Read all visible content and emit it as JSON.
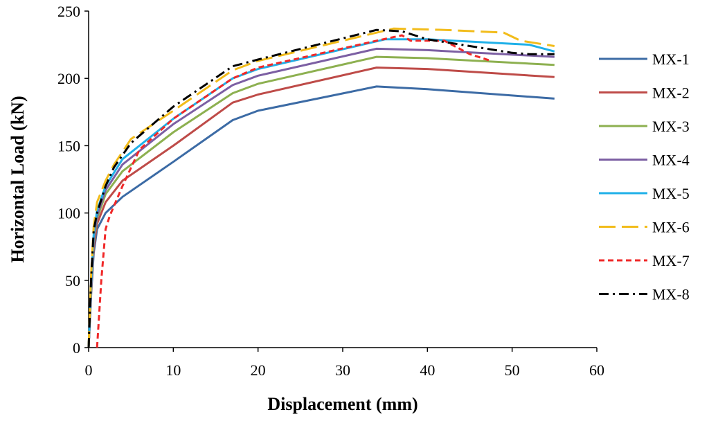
{
  "chart_data": {
    "type": "line",
    "title": "",
    "xlabel": "Displacement (mm)",
    "ylabel": "Horizontal Load (kN)",
    "xlim": [
      0,
      60
    ],
    "ylim": [
      0,
      250
    ],
    "xticks": [
      0,
      10,
      20,
      30,
      40,
      50,
      60
    ],
    "yticks": [
      0,
      50,
      100,
      150,
      200,
      250
    ],
    "grid": false,
    "legend_position": "right",
    "series": [
      {
        "name": "MX-1",
        "color": "#3C6BA5",
        "dash": "solid",
        "points": [
          [
            0,
            0
          ],
          [
            0.3,
            40
          ],
          [
            0.6,
            70
          ],
          [
            1,
            88
          ],
          [
            2,
            100
          ],
          [
            4,
            112
          ],
          [
            10,
            138
          ],
          [
            17,
            169
          ],
          [
            20,
            176
          ],
          [
            34,
            194
          ],
          [
            40,
            192
          ],
          [
            55,
            185
          ]
        ]
      },
      {
        "name": "MX-2",
        "color": "#BE4B48",
        "dash": "solid",
        "points": [
          [
            0,
            0
          ],
          [
            0.3,
            42
          ],
          [
            0.6,
            74
          ],
          [
            1,
            92
          ],
          [
            2,
            108
          ],
          [
            4,
            124
          ],
          [
            10,
            150
          ],
          [
            17,
            182
          ],
          [
            20,
            188
          ],
          [
            34,
            208
          ],
          [
            40,
            207
          ],
          [
            55,
            201
          ]
        ]
      },
      {
        "name": "MX-3",
        "color": "#8DB050",
        "dash": "solid",
        "points": [
          [
            0,
            0
          ],
          [
            0.3,
            44
          ],
          [
            0.6,
            78
          ],
          [
            1,
            96
          ],
          [
            2,
            114
          ],
          [
            4,
            131
          ],
          [
            10,
            160
          ],
          [
            17,
            189
          ],
          [
            20,
            196
          ],
          [
            34,
            216
          ],
          [
            40,
            215
          ],
          [
            55,
            210
          ]
        ]
      },
      {
        "name": "MX-4",
        "color": "#7C5FA3",
        "dash": "solid",
        "points": [
          [
            0,
            0
          ],
          [
            0.3,
            45
          ],
          [
            0.6,
            80
          ],
          [
            1,
            98
          ],
          [
            2,
            117
          ],
          [
            4,
            136
          ],
          [
            10,
            166
          ],
          [
            17,
            195
          ],
          [
            20,
            202
          ],
          [
            34,
            222
          ],
          [
            40,
            221
          ],
          [
            55,
            216
          ]
        ]
      },
      {
        "name": "MX-5",
        "color": "#1FB0E8",
        "dash": "solid",
        "points": [
          [
            0,
            0
          ],
          [
            0.3,
            48
          ],
          [
            0.6,
            84
          ],
          [
            1,
            102
          ],
          [
            2,
            120
          ],
          [
            4,
            140
          ],
          [
            6,
            150
          ],
          [
            10,
            170
          ],
          [
            17,
            200
          ],
          [
            20,
            207
          ],
          [
            35,
            229
          ],
          [
            40,
            229
          ],
          [
            52,
            225
          ],
          [
            55,
            220
          ]
        ]
      },
      {
        "name": "MX-6",
        "color": "#F2BC1B",
        "dash": "long",
        "points": [
          [
            0,
            0
          ],
          [
            0.3,
            55
          ],
          [
            0.6,
            90
          ],
          [
            1,
            108
          ],
          [
            2,
            124
          ],
          [
            3,
            136
          ],
          [
            5,
            155
          ],
          [
            10,
            176
          ],
          [
            17,
            206
          ],
          [
            20,
            213
          ],
          [
            36,
            237
          ],
          [
            42,
            236
          ],
          [
            49,
            234
          ],
          [
            51,
            228
          ],
          [
            55,
            224
          ]
        ]
      },
      {
        "name": "MX-7",
        "color": "#F02828",
        "dash": "short",
        "points": [
          [
            1,
            0
          ],
          [
            1.5,
            50
          ],
          [
            2,
            88
          ],
          [
            2.5,
            98
          ],
          [
            4,
            120
          ],
          [
            6,
            147
          ],
          [
            10,
            170
          ],
          [
            17,
            200
          ],
          [
            20,
            208
          ],
          [
            34,
            228
          ],
          [
            37,
            232
          ],
          [
            38,
            228
          ],
          [
            39.5,
            228
          ],
          [
            42,
            228
          ],
          [
            45,
            218
          ],
          [
            47.5,
            213
          ]
        ]
      },
      {
        "name": "MX-8",
        "color": "#000000",
        "dash": "dashdot",
        "points": [
          [
            0,
            0
          ],
          [
            0.3,
            52
          ],
          [
            0.6,
            87
          ],
          [
            1,
            100
          ],
          [
            2,
            120
          ],
          [
            3,
            134
          ],
          [
            5,
            152
          ],
          [
            10,
            179
          ],
          [
            17,
            209
          ],
          [
            20,
            214
          ],
          [
            34,
            236
          ],
          [
            37,
            235
          ],
          [
            40,
            229
          ],
          [
            45,
            224
          ],
          [
            50,
            219
          ],
          [
            52,
            218
          ],
          [
            55,
            218
          ]
        ]
      }
    ]
  }
}
